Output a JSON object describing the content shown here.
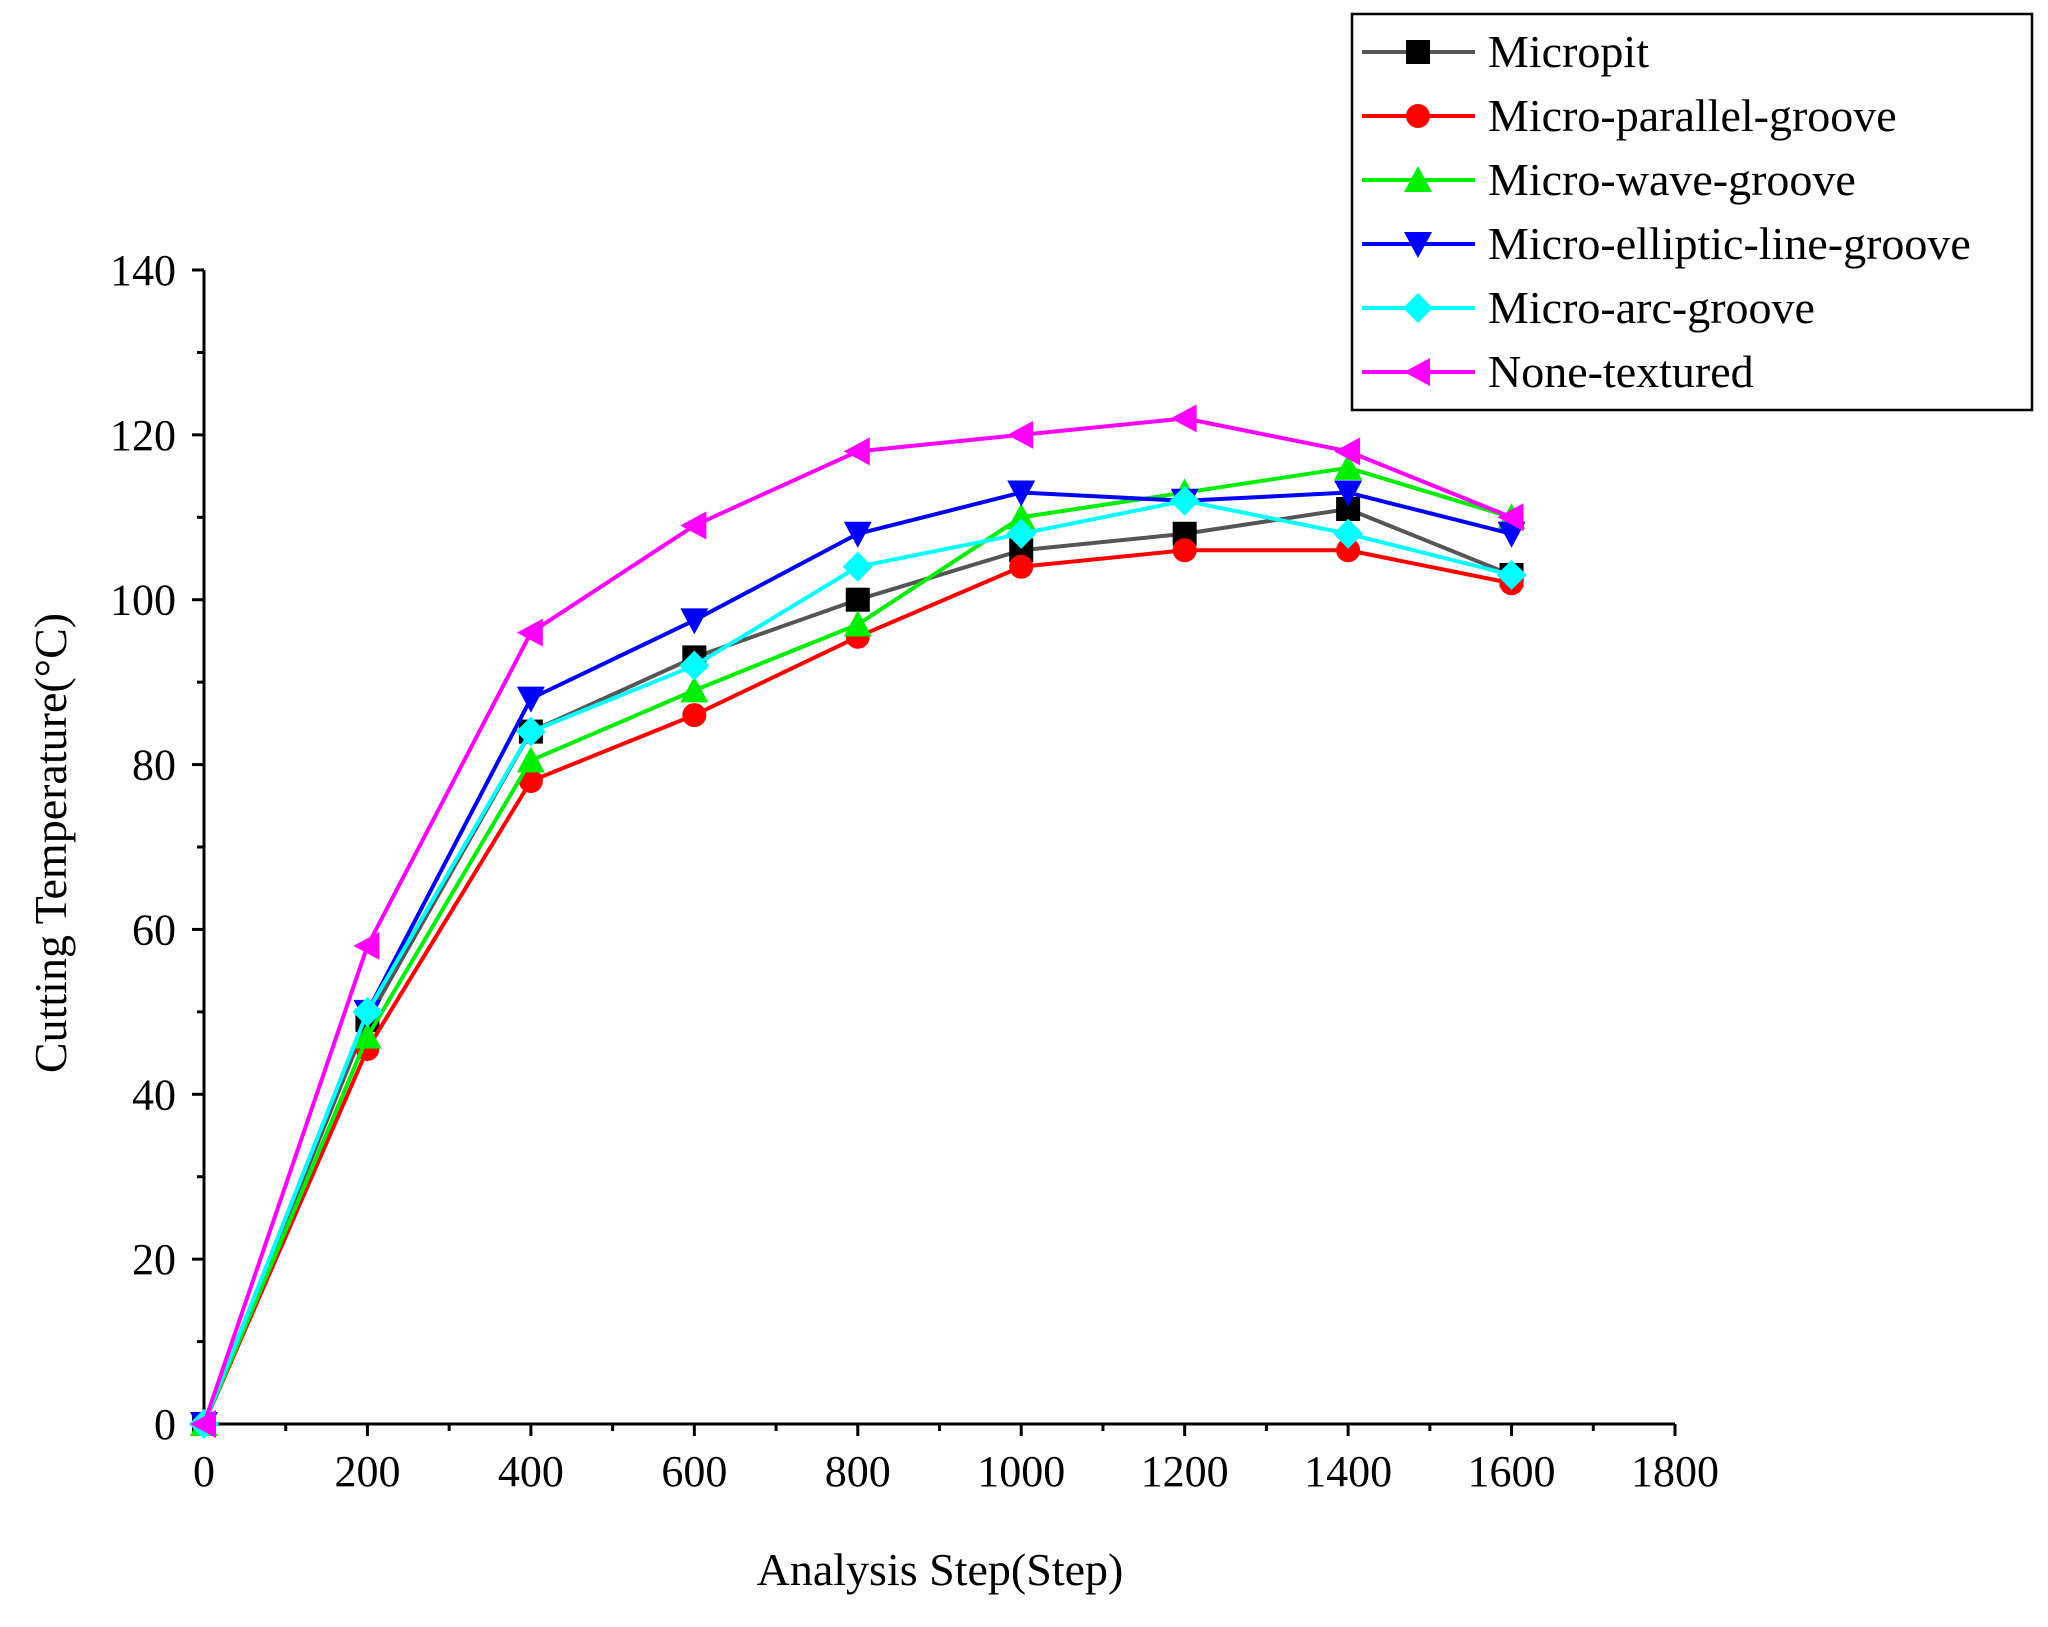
{
  "chart_data": {
    "type": "line",
    "title": "",
    "xlabel": "Analysis Step(Step)",
    "ylabel": "Cutting Temperature(°C)",
    "xlim": [
      0,
      1800
    ],
    "ylim": [
      0,
      140
    ],
    "xticks": [
      0,
      200,
      400,
      600,
      800,
      1000,
      1200,
      1400,
      1600,
      1800
    ],
    "yticks": [
      0,
      20,
      40,
      60,
      80,
      100,
      120,
      140
    ],
    "x": [
      0,
      200,
      400,
      600,
      800,
      1000,
      1200,
      1400,
      1600
    ],
    "grid": false,
    "legend_position": "top-right",
    "series": [
      {
        "name": "Micropit",
        "color": "#000000",
        "line_color": "#555555",
        "marker": "square",
        "values": [
          0,
          49,
          84,
          93,
          100,
          106,
          108,
          111,
          103
        ]
      },
      {
        "name": "Micro-parallel-groove",
        "color": "#ff0000",
        "line_color": "#ff0000",
        "marker": "circle",
        "values": [
          0,
          45.5,
          78,
          86,
          95.5,
          104,
          106,
          106,
          102
        ]
      },
      {
        "name": "Micro-wave-groove",
        "color": "#00ee00",
        "line_color": "#00ee00",
        "marker": "triangle-up",
        "values": [
          0,
          47,
          80.5,
          89,
          97,
          110,
          113,
          116,
          110
        ]
      },
      {
        "name": "Micro-elliptic-line-groove",
        "color": "#0000ff",
        "line_color": "#0000ff",
        "marker": "triangle-down",
        "values": [
          0,
          50,
          88,
          97.5,
          108,
          113,
          112,
          113,
          108
        ]
      },
      {
        "name": "Micro-arc-groove",
        "color": "#00ffff",
        "line_color": "#00ffff",
        "marker": "diamond",
        "values": [
          0,
          50,
          84,
          92,
          104,
          108,
          112,
          108,
          103
        ]
      },
      {
        "name": "None-textured",
        "color": "#ff00ff",
        "line_color": "#ff00ff",
        "marker": "triangle-left",
        "values": [
          0,
          58,
          96,
          109,
          118,
          120,
          122,
          118,
          110
        ]
      }
    ]
  }
}
